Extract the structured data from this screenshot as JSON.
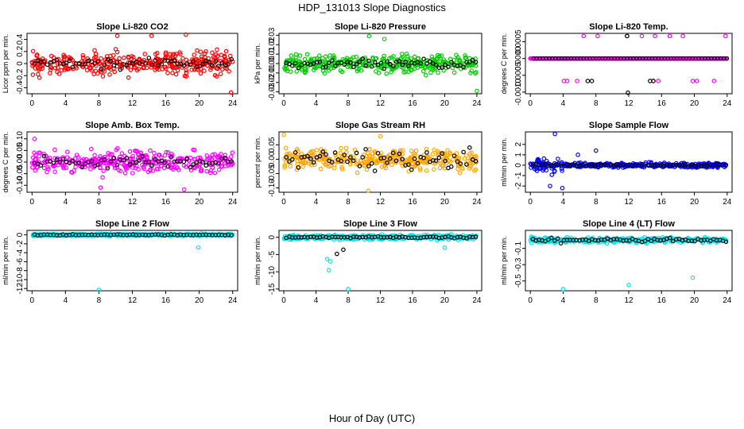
{
  "figure": {
    "title": "HDP_131013  Slope Diagnostics",
    "xlabel": "Hour of Day (UTC)"
  },
  "chart_data": [
    {
      "id": "co2",
      "type": "scatter",
      "title": "Slope Li-820 CO2",
      "ylabel": "Licor ppm per min.",
      "color": "#ff0000",
      "xlim": [
        -0.6,
        24.6
      ],
      "ylim": [
        -0.5,
        0.5
      ],
      "xticks": [
        "0",
        "4",
        "8",
        "12",
        "16",
        "20",
        "24"
      ],
      "yticks": [
        "-0.4",
        "-0.2",
        "0",
        "0.2",
        "0.4"
      ],
      "series": [
        {
          "name": "raw",
          "spread": 0.17,
          "band": 0.45,
          "outliers": [
            [
              18.4,
              0.48
            ],
            [
              10.2,
              0.46
            ],
            [
              23.8,
              -0.48
            ],
            [
              14.3,
              0.46
            ]
          ]
        },
        {
          "name": "mean",
          "color": "#000000",
          "spread": 0.08
        }
      ]
    },
    {
      "id": "pressure",
      "type": "scatter",
      "title": "Slope Li-820 Pressure",
      "ylabel": "kPa per min.",
      "color": "#00cc00",
      "xlim": [
        -0.6,
        24.6
      ],
      "ylim": [
        -0.032,
        0.032
      ],
      "xticks": [
        "0",
        "4",
        "8",
        "12",
        "16",
        "20",
        "24"
      ],
      "yticks": [
        "-0.03",
        "-0.02",
        "-0.01",
        "0.00",
        "0.01",
        "0.02",
        "0.03"
      ],
      "series": [
        {
          "name": "raw",
          "spread": 0.009,
          "band": 0.024,
          "outliers": [
            [
              10.6,
              0.029
            ],
            [
              12.5,
              0.026
            ],
            [
              24.0,
              -0.029
            ]
          ]
        },
        {
          "name": "mean",
          "color": "#000000",
          "spread": 0.005
        }
      ]
    },
    {
      "id": "li820temp",
      "type": "scatter",
      "title": "Slope Li-820 Temp.",
      "ylabel": "degrees C per min.",
      "color": "#ff00ff",
      "xlim": [
        -0.6,
        24.6
      ],
      "ylim": [
        -0.00105,
        0.00075
      ],
      "xticks": [
        "0",
        "4",
        "8",
        "12",
        "16",
        "20",
        "24"
      ],
      "yticks": [
        "-0.0010",
        "-0.0005",
        "0.0000",
        "0.0005"
      ],
      "series": [
        {
          "name": "raw",
          "levels": [
            0.0,
            0.00067,
            -0.00067
          ],
          "upper_x": [
            6.5,
            8.2,
            11.8,
            13.6,
            15.2,
            17.0,
            18.6,
            23.8
          ],
          "lower_x": [
            4.1,
            4.5,
            5.7,
            15.0,
            15.6,
            19.8,
            20.3,
            22.4
          ]
        },
        {
          "name": "mean",
          "color": "#000000",
          "lower_x": [
            7.0,
            7.5,
            14.6,
            15.0
          ],
          "bottom_x": [
            11.9
          ],
          "upper_x": [
            11.8
          ]
        }
      ]
    },
    {
      "id": "boxtemp",
      "type": "scatter",
      "title": "Slope Amb. Box Temp.",
      "ylabel": "degrees C per min.",
      "color": "#ff00ff",
      "xlim": [
        -0.6,
        24.6
      ],
      "ylim": [
        -0.13,
        0.13
      ],
      "xticks": [
        "0",
        "4",
        "8",
        "12",
        "16",
        "20",
        "24"
      ],
      "yticks": [
        "-0.10",
        "-0.05",
        "0.00",
        "0.05",
        "0.10"
      ],
      "series": [
        {
          "name": "raw",
          "spread": 0.045,
          "band": 0.11,
          "outliers": [
            [
              0.3,
              0.1
            ],
            [
              18.2,
              -0.118
            ],
            [
              8.2,
              -0.11
            ]
          ]
        },
        {
          "name": "mean",
          "color": "#000000",
          "spread": 0.025
        }
      ]
    },
    {
      "id": "rh",
      "type": "scatter",
      "title": "Slope Gas Stream RH",
      "ylabel": "percent per min.",
      "color": "#ffa500",
      "xlim": [
        -0.6,
        24.6
      ],
      "ylim": [
        -0.115,
        0.095
      ],
      "xticks": [
        "0",
        "4",
        "8",
        "12",
        "16",
        "20",
        "24"
      ],
      "yticks": [
        "-0.10",
        "-0.05",
        "0.00",
        "0.05"
      ],
      "series": [
        {
          "name": "raw",
          "spread": 0.035,
          "band": 0.09,
          "outliers": [
            [
              0.0,
              0.085
            ],
            [
              12.0,
              0.08
            ],
            [
              10.5,
              -0.11
            ]
          ]
        },
        {
          "name": "mean",
          "color": "#000000",
          "spread": 0.035
        }
      ]
    },
    {
      "id": "sampleflow",
      "type": "scatter",
      "title": "Slope Sample Flow",
      "ylabel": "ml/min per min.",
      "color": "#0000ff",
      "xlim": [
        -0.6,
        24.6
      ],
      "ylim": [
        -2.6,
        3.2
      ],
      "xticks": [
        "0",
        "4",
        "8",
        "12",
        "16",
        "20",
        "24"
      ],
      "yticks": [
        "-2",
        "-1",
        "0",
        "1",
        "2"
      ],
      "series": [
        {
          "name": "raw",
          "spread": 0.22,
          "band": 0.45,
          "burst_start": 0.5,
          "burst_end": 4.2,
          "outliers": [
            [
              3.0,
              3.0
            ],
            [
              8.0,
              1.4
            ],
            [
              3.9,
              -2.2
            ],
            [
              2.4,
              -2.0
            ],
            [
              5.8,
              1.0
            ]
          ]
        },
        {
          "name": "mean",
          "color": "#000000",
          "spread": 0.1
        }
      ]
    },
    {
      "id": "line2",
      "type": "scatter",
      "title": "Slope Line 2 Flow",
      "ylabel": "ml/min per min.",
      "color": "#00e5ee",
      "xlim": [
        -0.6,
        24.6
      ],
      "ylim": [
        -12.5,
        1.0
      ],
      "xticks": [
        "0",
        "4",
        "8",
        "12",
        "16",
        "20",
        "24"
      ],
      "yticks": [
        "-12",
        "-10",
        "-8",
        "-6",
        "-4",
        "-2",
        "0"
      ],
      "series": [
        {
          "name": "raw",
          "spread": 0.25,
          "band": 0.7,
          "outliers": [
            [
              8.0,
              -12.3
            ],
            [
              19.9,
              -2.8
            ]
          ]
        },
        {
          "name": "mean",
          "color": "#000000",
          "spread": 0.1
        }
      ]
    },
    {
      "id": "line3",
      "type": "scatter",
      "title": "Slope Line 3 Flow",
      "ylabel": "ml/min per min.",
      "color": "#00e5ee",
      "xlim": [
        -0.6,
        24.6
      ],
      "ylim": [
        -15.5,
        2.0
      ],
      "xticks": [
        "0",
        "4",
        "8",
        "12",
        "16",
        "20",
        "24"
      ],
      "yticks": [
        "-15",
        "-10",
        "-5",
        "0"
      ],
      "series": [
        {
          "name": "raw",
          "spread": 0.7,
          "band": 1.8,
          "outliers": [
            [
              5.6,
              -9.5
            ],
            [
              5.8,
              -7.0
            ],
            [
              5.4,
              -6.3
            ],
            [
              8.0,
              -15.0
            ],
            [
              20.0,
              -3.0
            ]
          ]
        },
        {
          "name": "mean",
          "color": "#000000",
          "spread": 0.25,
          "outliers": [
            [
              7.4,
              -3.6
            ],
            [
              6.6,
              -4.8
            ]
          ]
        }
      ]
    },
    {
      "id": "line4",
      "type": "scatter",
      "title": "Slope Line 4 (LT) Flow",
      "ylabel": "ml/min per min.",
      "color": "#00e5ee",
      "xlim": [
        -0.6,
        24.6
      ],
      "ylim": [
        -0.62,
        0.12
      ],
      "xticks": [
        "0",
        "4",
        "8",
        "12",
        "16",
        "20",
        "24"
      ],
      "yticks": [
        "-0.5",
        "-0.3",
        "-0.1"
      ],
      "series": [
        {
          "name": "raw",
          "spread": 0.03,
          "band": 0.08,
          "outliers": [
            [
              4.0,
              -0.6
            ],
            [
              12.0,
              -0.55
            ],
            [
              19.8,
              -0.46
            ]
          ]
        },
        {
          "name": "mean",
          "color": "#000000",
          "spread": 0.025
        }
      ]
    }
  ]
}
